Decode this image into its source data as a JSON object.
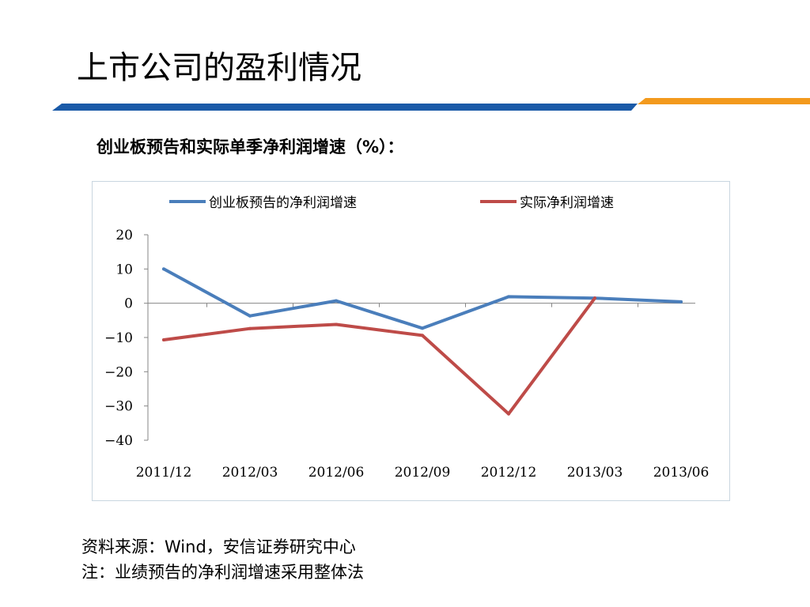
{
  "slide": {
    "title": "上市公司的盈利情况",
    "colors": {
      "rule_blue": "#1a5aa8",
      "rule_orange": "#f39a1d"
    }
  },
  "chart_data": {
    "type": "line",
    "title": "创业板预告和实际单季净利润增速（%）：",
    "categories": [
      "2011/12",
      "2012/03",
      "2012/06",
      "2012/09",
      "2012/12",
      "2013/03",
      "2013/06"
    ],
    "series": [
      {
        "name": "创业板预告的净利润增速",
        "color": "#4a7ebb",
        "values": [
          10,
          -3.7,
          0.7,
          -7.3,
          1.9,
          1.5,
          0.4
        ]
      },
      {
        "name": "实际净利润增速",
        "color": "#be4b48",
        "values": [
          -10.7,
          -7.4,
          -6.2,
          -9.4,
          -32.3,
          1.5,
          null
        ]
      }
    ],
    "ylim": [
      -40,
      20
    ],
    "yticks": [
      20,
      10,
      0,
      -10,
      -20,
      -30,
      -40
    ],
    "ytick_labels": [
      "20",
      "10",
      "0",
      "−10",
      "−20",
      "−30",
      "−40"
    ],
    "xlabel": "",
    "ylabel": "",
    "legend": "top",
    "grid": false
  },
  "footnotes": {
    "source": "资料来源：Wind，安信证券研究中心",
    "note": "注：业绩预告的净利润增速采用整体法"
  }
}
